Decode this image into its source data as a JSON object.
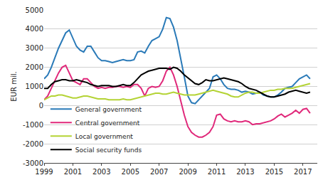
{
  "chart_data": {
    "type": "line",
    "y_label": "EUR mil.",
    "x": [
      1999,
      1999.25,
      1999.5,
      1999.75,
      2000,
      2000.25,
      2000.5,
      2000.75,
      2001,
      2001.25,
      2001.5,
      2001.75,
      2002,
      2002.25,
      2002.5,
      2002.75,
      2003,
      2003.25,
      2003.5,
      2003.75,
      2004,
      2004.25,
      2004.5,
      2004.75,
      2005,
      2005.25,
      2005.5,
      2005.75,
      2006,
      2006.25,
      2006.5,
      2006.75,
      2007,
      2007.25,
      2007.5,
      2007.75,
      2008,
      2008.25,
      2008.5,
      2008.75,
      2009,
      2009.25,
      2009.5,
      2009.75,
      2010,
      2010.25,
      2010.5,
      2010.75,
      2011,
      2011.25,
      2011.5,
      2011.75,
      2012,
      2012.25,
      2012.5,
      2012.75,
      2013,
      2013.25,
      2013.5,
      2013.75,
      2014,
      2014.25,
      2014.5,
      2014.75,
      2015,
      2015.25,
      2015.5,
      2015.75,
      2016,
      2016.25,
      2016.5,
      2016.75,
      2017,
      2017.25,
      2017.5
    ],
    "series": [
      {
        "name": "General government",
        "color": "#2a7ab8",
        "values": [
          1400,
          1600,
          2000,
          2500,
          3000,
          3400,
          3800,
          3950,
          3500,
          3100,
          2900,
          2800,
          3100,
          3100,
          2800,
          2500,
          2350,
          2350,
          2300,
          2250,
          2300,
          2350,
          2400,
          2350,
          2350,
          2400,
          2800,
          2850,
          2750,
          3100,
          3400,
          3500,
          3600,
          4000,
          4600,
          4550,
          4100,
          3400,
          2500,
          1500,
          500,
          150,
          100,
          300,
          500,
          700,
          900,
          1500,
          1600,
          1400,
          1100,
          900,
          850,
          850,
          800,
          700,
          750,
          700,
          600,
          650,
          700,
          550,
          500,
          450,
          450,
          550,
          700,
          900,
          950,
          1000,
          1200,
          1400,
          1500,
          1600,
          1400
        ]
      },
      {
        "name": "Central government",
        "color": "#e0287a",
        "values": [
          300,
          500,
          900,
          1300,
          1700,
          2000,
          2100,
          1700,
          1300,
          1200,
          1100,
          1400,
          1400,
          1200,
          1000,
          900,
          950,
          900,
          950,
          950,
          1000,
          1000,
          950,
          1000,
          950,
          1100,
          1100,
          900,
          500,
          900,
          1000,
          950,
          1000,
          1300,
          1800,
          2000,
          1600,
          1000,
          200,
          -500,
          -1100,
          -1400,
          -1550,
          -1650,
          -1650,
          -1550,
          -1400,
          -1100,
          -500,
          -450,
          -700,
          -800,
          -850,
          -800,
          -850,
          -850,
          -800,
          -850,
          -1000,
          -950,
          -950,
          -900,
          -850,
          -800,
          -700,
          -550,
          -450,
          -600,
          -500,
          -400,
          -250,
          -400,
          -200,
          -150,
          -400
        ]
      },
      {
        "name": "Local government",
        "color": "#b4d335",
        "values": [
          300,
          400,
          500,
          500,
          550,
          550,
          500,
          450,
          400,
          400,
          450,
          500,
          500,
          450,
          400,
          350,
          350,
          350,
          300,
          300,
          300,
          300,
          350,
          300,
          300,
          350,
          400,
          450,
          500,
          550,
          600,
          650,
          650,
          600,
          600,
          650,
          700,
          650,
          600,
          550,
          550,
          550,
          550,
          600,
          650,
          700,
          750,
          800,
          750,
          700,
          650,
          600,
          500,
          450,
          450,
          550,
          650,
          700,
          700,
          650,
          650,
          700,
          750,
          800,
          800,
          850,
          850,
          900,
          900,
          900,
          950,
          1000,
          1050,
          1100,
          1150
        ]
      },
      {
        "name": "Social security funds",
        "color": "#000000",
        "values": [
          900,
          900,
          1100,
          1250,
          1300,
          1350,
          1350,
          1300,
          1300,
          1350,
          1300,
          1250,
          1200,
          1100,
          1050,
          1000,
          1050,
          1050,
          1050,
          1000,
          1000,
          1050,
          1100,
          1050,
          1050,
          1200,
          1400,
          1600,
          1700,
          1800,
          1850,
          1900,
          1950,
          1950,
          1950,
          1900,
          2000,
          1950,
          1800,
          1600,
          1450,
          1300,
          1150,
          1100,
          1200,
          1350,
          1300,
          1300,
          1350,
          1400,
          1450,
          1400,
          1350,
          1300,
          1250,
          1150,
          1000,
          900,
          850,
          800,
          700,
          600,
          500,
          450,
          450,
          500,
          550,
          600,
          700,
          750,
          800,
          750,
          700,
          650,
          700
        ]
      }
    ],
    "xlim": [
      1999,
      2018
    ],
    "xticks": [
      1999,
      2001,
      2003,
      2005,
      2007,
      2009,
      2011,
      2013,
      2015,
      2017
    ],
    "ylim": [
      -3000,
      5000
    ],
    "yticks": [
      -3000,
      -2000,
      -1000,
      0,
      1000,
      2000,
      3000,
      4000,
      5000
    ],
    "grid": true,
    "legend": "bottom-left"
  }
}
